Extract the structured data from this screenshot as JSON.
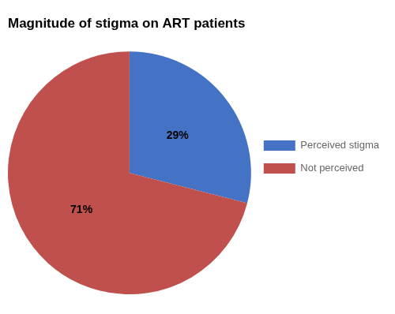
{
  "chart_data": {
    "type": "pie",
    "title": "Magnitude of stigma on ART patients",
    "categories": [
      "Perceived stigma",
      "Not perceived"
    ],
    "values": [
      29,
      71
    ],
    "value_labels": [
      "29%",
      "71%"
    ],
    "colors": [
      "#4472C4",
      "#C0504D"
    ],
    "data_labels": true,
    "legend": "right"
  }
}
